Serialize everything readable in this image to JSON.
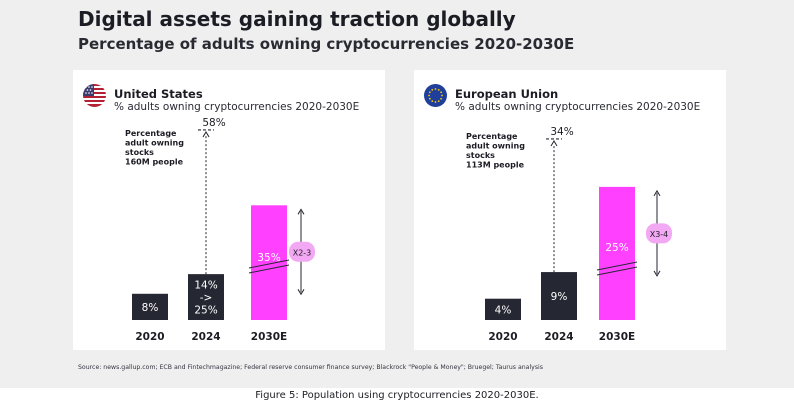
{
  "header": {
    "title": "Digital assets gaining traction globally",
    "subtitle": "Percentage of adults owning cryptocurrencies 2020-2030E"
  },
  "chart_data": [
    {
      "type": "bar",
      "title": "United States",
      "subtitle": "% adults owning cryptocurrencies 2020-2030E",
      "flag_icon": "us-flag-icon",
      "categories": [
        "2020",
        "2024",
        "2030E"
      ],
      "values": [
        8,
        14,
        35
      ],
      "bar_labels": [
        "8%",
        "14%\n->\n25%",
        "35%"
      ],
      "bar_colors": [
        "#252732",
        "#252732",
        "#ff40ff"
      ],
      "stocks_value": 58,
      "stocks_label": "58%",
      "stocks_annotation": [
        "Percentage",
        "adult owning",
        "stocks",
        "160M people"
      ],
      "growth_label": "X2-3",
      "ylim": [
        0,
        65
      ],
      "xlabel": "",
      "ylabel": ""
    },
    {
      "type": "bar",
      "title": "European Union",
      "subtitle": "% adults owning cryptocurrencies 2020-2030E",
      "flag_icon": "eu-flag-icon",
      "categories": [
        "2020",
        "2024",
        "2030E"
      ],
      "values": [
        4,
        9,
        25
      ],
      "bar_labels": [
        "4%",
        "9%",
        "25%"
      ],
      "bar_colors": [
        "#252732",
        "#252732",
        "#ff40ff"
      ],
      "stocks_value": 34,
      "stocks_label": "34%",
      "stocks_annotation": [
        "Percentage",
        "adult owning",
        "stocks",
        "113M people"
      ],
      "growth_label": "X3-4",
      "ylim": [
        0,
        40
      ],
      "xlabel": "",
      "ylabel": ""
    }
  ],
  "colors": {
    "dark_bar": "#252732",
    "pink_bar": "#ff40ff",
    "growth_badge": "#f3a8f3"
  },
  "footer": {
    "source": "Source: news.gallup.com; ECB and Fintechmagazine; Federal reserve consumer finance survey; Blackrock \"People & Money\"; Bruegel; Taurus analysis",
    "caption": "Figure 5: Population using cryptocurrencies 2020-2030E."
  }
}
